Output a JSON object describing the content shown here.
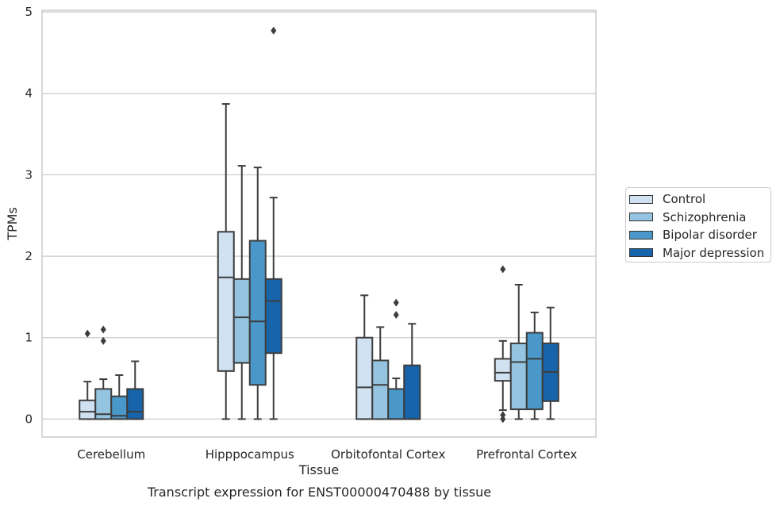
{
  "chart_data": {
    "type": "boxplot",
    "caption": "Transcript expression for ENST00000470488 by tissue",
    "xlabel": "Tissue",
    "ylabel": "TPMs",
    "ylim": [
      -0.22,
      5.02
    ],
    "yticks": [
      0,
      1,
      2,
      3,
      4,
      5
    ],
    "grid": "horizontal",
    "legend_position": "right",
    "categories": [
      "Cerebellum",
      "Hipppocampus",
      "Orbitofontal Cortex",
      "Prefrontal Cortex"
    ],
    "series": [
      {
        "name": "Control",
        "color": "#d0e1f2",
        "boxes": [
          {
            "whislo": 0.0,
            "q1": 0.0,
            "med": 0.09,
            "q3": 0.23,
            "whishi": 0.46,
            "fliers": [
              1.05
            ]
          },
          {
            "whislo": 0.0,
            "q1": 0.59,
            "med": 1.74,
            "q3": 2.3,
            "whishi": 3.87,
            "fliers": []
          },
          {
            "whislo": 0.0,
            "q1": 0.0,
            "med": 0.39,
            "q3": 1.0,
            "whishi": 1.52,
            "fliers": []
          },
          {
            "whislo": 0.11,
            "q1": 0.47,
            "med": 0.57,
            "q3": 0.74,
            "whishi": 0.96,
            "fliers": [
              0.05,
              0.0,
              1.84
            ]
          }
        ]
      },
      {
        "name": "Schizophrenia",
        "color": "#94c4df",
        "boxes": [
          {
            "whislo": 0.0,
            "q1": 0.0,
            "med": 0.06,
            "q3": 0.37,
            "whishi": 0.49,
            "fliers": [
              1.1,
              0.96
            ]
          },
          {
            "whislo": 0.0,
            "q1": 0.69,
            "med": 1.25,
            "q3": 1.72,
            "whishi": 3.11,
            "fliers": []
          },
          {
            "whislo": 0.0,
            "q1": 0.0,
            "med": 0.42,
            "q3": 0.72,
            "whishi": 1.13,
            "fliers": []
          },
          {
            "whislo": 0.0,
            "q1": 0.12,
            "med": 0.7,
            "q3": 0.93,
            "whishi": 1.65,
            "fliers": []
          }
        ]
      },
      {
        "name": "Bipolar disorder",
        "color": "#4a98c9",
        "boxes": [
          {
            "whislo": 0.0,
            "q1": 0.0,
            "med": 0.04,
            "q3": 0.28,
            "whishi": 0.54,
            "fliers": []
          },
          {
            "whislo": 0.0,
            "q1": 0.42,
            "med": 1.2,
            "q3": 2.19,
            "whishi": 3.09,
            "fliers": []
          },
          {
            "whislo": 0.0,
            "q1": 0.0,
            "med": 0.0,
            "q3": 0.37,
            "whishi": 0.5,
            "fliers": [
              1.43,
              1.28
            ]
          },
          {
            "whislo": 0.0,
            "q1": 0.12,
            "med": 0.74,
            "q3": 1.06,
            "whishi": 1.31,
            "fliers": []
          }
        ]
      },
      {
        "name": "Major depression",
        "color": "#1764ab",
        "boxes": [
          {
            "whislo": 0.0,
            "q1": 0.0,
            "med": 0.09,
            "q3": 0.37,
            "whishi": 0.71,
            "fliers": []
          },
          {
            "whislo": 0.0,
            "q1": 0.81,
            "med": 1.45,
            "q3": 1.72,
            "whishi": 2.72,
            "fliers": [
              4.77
            ]
          },
          {
            "whislo": 0.0,
            "q1": 0.0,
            "med": 0.0,
            "q3": 0.66,
            "whishi": 1.17,
            "fliers": []
          },
          {
            "whislo": 0.0,
            "q1": 0.22,
            "med": 0.58,
            "q3": 0.93,
            "whishi": 1.37,
            "fliers": []
          }
        ]
      }
    ]
  }
}
